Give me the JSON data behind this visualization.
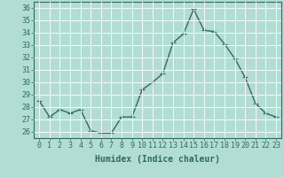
{
  "x": [
    0,
    1,
    2,
    3,
    4,
    5,
    6,
    7,
    8,
    9,
    10,
    11,
    12,
    13,
    14,
    15,
    16,
    17,
    18,
    19,
    20,
    21,
    22,
    23
  ],
  "y": [
    28.5,
    27.2,
    27.8,
    27.5,
    27.8,
    26.1,
    25.9,
    25.9,
    27.2,
    27.2,
    29.4,
    30.0,
    30.7,
    33.2,
    33.9,
    35.9,
    34.2,
    34.1,
    33.1,
    31.9,
    30.4,
    28.3,
    27.5,
    27.2
  ],
  "line_color": "#2e6b5e",
  "bg_color": "#b2ddd4",
  "grid_color": "#ffffff",
  "xlabel": "Humidex (Indice chaleur)",
  "ylim": [
    25.5,
    36.5
  ],
  "xlim": [
    -0.5,
    23.5
  ],
  "yticks": [
    26,
    27,
    28,
    29,
    30,
    31,
    32,
    33,
    34,
    35,
    36
  ],
  "xticks": [
    0,
    1,
    2,
    3,
    4,
    5,
    6,
    7,
    8,
    9,
    10,
    11,
    12,
    13,
    14,
    15,
    16,
    17,
    18,
    19,
    20,
    21,
    22,
    23
  ],
  "marker": "+",
  "markersize": 4,
  "linewidth": 1.0,
  "xlabel_fontsize": 7,
  "tick_fontsize": 6,
  "tick_color": "#2e6b5e",
  "label_color": "#2e6b5e"
}
